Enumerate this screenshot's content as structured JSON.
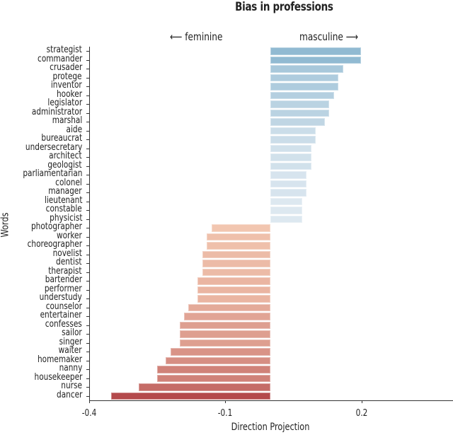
{
  "chart_data": {
    "type": "bar",
    "orientation": "horizontal",
    "title": "Bias in professions",
    "xlabel": "Direction Projection",
    "ylabel": "Words",
    "xlim": [
      -0.4,
      0.4
    ],
    "xticks": [
      -0.4,
      -0.1,
      0.2
    ],
    "xtick_labels": [
      "-0.4",
      "-0.1",
      "0.2"
    ],
    "annotations": [
      {
        "text": "⟵ feminine",
        "position": "above-left-of-zero"
      },
      {
        "text": "masculine ⟶",
        "position": "above-right-of-zero"
      }
    ],
    "grid": false,
    "legend": null,
    "categories": [
      "strategist",
      "commander",
      "crusader",
      "protege",
      "inventor",
      "hooker",
      "legislator",
      "administrator",
      "marshal",
      "aide",
      "bureaucrat",
      "undersecretary",
      "architect",
      "geologist",
      "parliamentarian",
      "colonel",
      "manager",
      "lieutenant",
      "constable",
      "physicist",
      "photographer",
      "worker",
      "choreographer",
      "novelist",
      "dentist",
      "therapist",
      "bartender",
      "performer",
      "understudy",
      "counselor",
      "entertainer",
      "confesses",
      "sailor",
      "singer",
      "waiter",
      "homemaker",
      "nanny",
      "housekeeper",
      "nurse",
      "dancer"
    ],
    "values": [
      0.2,
      0.2,
      0.16,
      0.15,
      0.15,
      0.14,
      0.13,
      0.13,
      0.12,
      0.1,
      0.1,
      0.09,
      0.09,
      0.09,
      0.08,
      0.08,
      0.08,
      0.07,
      0.07,
      0.07,
      -0.13,
      -0.14,
      -0.14,
      -0.15,
      -0.15,
      -0.15,
      -0.16,
      -0.16,
      -0.16,
      -0.18,
      -0.19,
      -0.2,
      -0.2,
      -0.2,
      -0.22,
      -0.23,
      -0.25,
      -0.25,
      -0.29,
      -0.35
    ],
    "colors": {
      "masculine_max": "#91bad2",
      "masculine_min": "#dde8f0",
      "feminine_min": "#f2c6b0",
      "feminine_max": "#b44a4c"
    }
  }
}
